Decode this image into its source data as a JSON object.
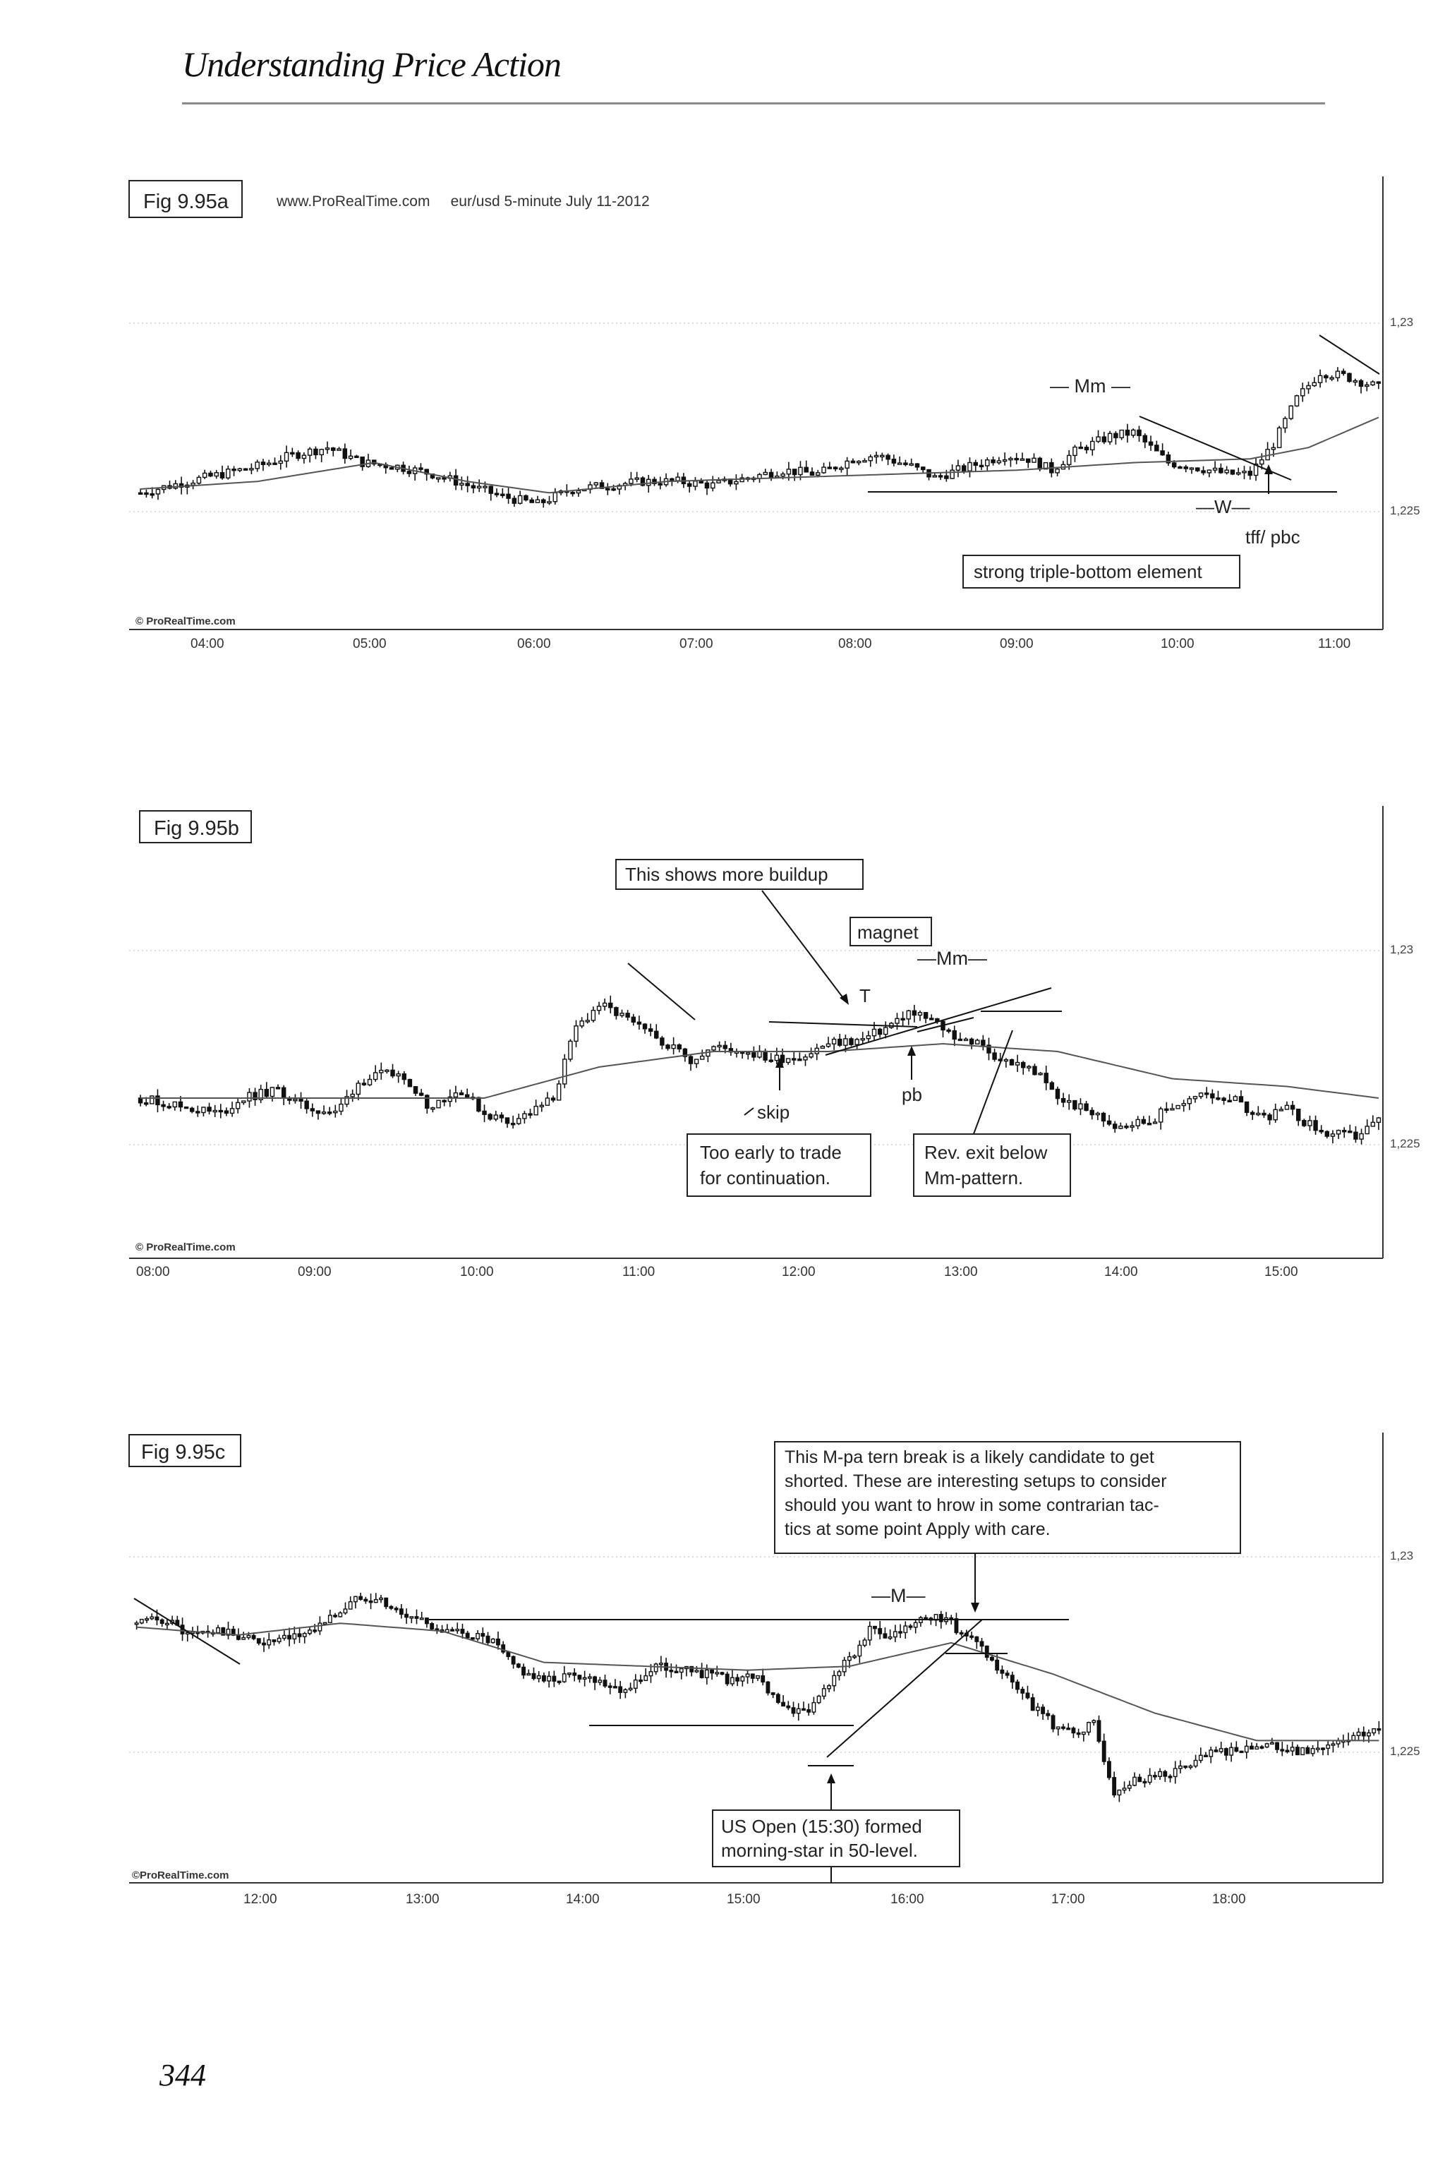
{
  "header": {
    "title": "Understanding Price Action"
  },
  "page_number": "344",
  "charts": [
    {
      "fig": "Fig 9.95a",
      "info": "www.ProRealTime.com     eur/usd 5-minute July 11-2012",
      "source": "© ProRealTime.com",
      "times": [
        "04:00",
        "05:00",
        "06:00",
        "07:00",
        "08:00",
        "09:00",
        "10:00",
        "11:00"
      ],
      "y_labels": [
        "1,23",
        "1,225"
      ],
      "annotations": {
        "mm": "— Mm —",
        "w": "—W—",
        "tff": "tff/ pbc",
        "box1": "strong triple-bottom element"
      }
    },
    {
      "fig": "Fig 9.95b",
      "source": "© ProRealTime.com",
      "times": [
        "08:00",
        "09:00",
        "10:00",
        "11:00",
        "12:00",
        "13:00",
        "14:00",
        "15:00"
      ],
      "y_labels": [
        "1,23",
        "1,225"
      ],
      "annotations": {
        "box_buildup": "This shows more buildup",
        "box_magnet": "magnet",
        "mm": "—Mm—",
        "t": "T",
        "pb": "pb",
        "skip": "skip",
        "box_early_1": "Too early to trade",
        "box_early_2": "for continuation.",
        "box_rev_1": "Rev. exit below",
        "box_rev_2": "Mm-pattern."
      }
    },
    {
      "fig": "Fig 9.95c",
      "source": "©ProRealTime.com",
      "times": [
        "12:00",
        "13:00",
        "14:00",
        "15:00",
        "16:00",
        "17:00",
        "18:00"
      ],
      "y_labels": [
        "1,23",
        "1,225"
      ],
      "annotations": {
        "box_mpattern": [
          "This M-pa tern break is a likely candidate to get",
          "shorted. These are interesting setups to consider",
          "should you want to  hrow in some contrarian tac-",
          "tics at some point  Apply with care."
        ],
        "m": "—M—",
        "box_usopen_1": "US Open (15:30) formed",
        "box_usopen_2": "morning-star in 50-level."
      }
    }
  ],
  "chart_data": [
    {
      "type": "candlestick",
      "title": "Fig 9.95a",
      "subtitle": "eur/usd 5-minute July 11-2012",
      "x_ticks": [
        "04:00",
        "05:00",
        "06:00",
        "07:00",
        "08:00",
        "09:00",
        "10:00",
        "11:00"
      ],
      "y_ticks": [
        1.23,
        1.225
      ],
      "ylim": [
        1.2235,
        1.2315
      ],
      "close_path": [
        [
          0,
          1.2255
        ],
        [
          8,
          1.2258
        ],
        [
          14,
          1.226
        ],
        [
          20,
          1.2262
        ],
        [
          26,
          1.2265
        ],
        [
          32,
          1.2267
        ],
        [
          38,
          1.2263
        ],
        [
          44,
          1.2262
        ],
        [
          50,
          1.226
        ],
        [
          56,
          1.2257
        ],
        [
          62,
          1.2254
        ],
        [
          68,
          1.2252
        ],
        [
          74,
          1.2256
        ],
        [
          80,
          1.2257
        ],
        [
          86,
          1.2258
        ],
        [
          92,
          1.2258
        ],
        [
          98,
          1.2257
        ],
        [
          104,
          1.2259
        ],
        [
          110,
          1.2261
        ],
        [
          116,
          1.226
        ],
        [
          122,
          1.2264
        ],
        [
          126,
          1.2265
        ],
        [
          132,
          1.2262
        ],
        [
          136,
          1.2259
        ],
        [
          142,
          1.2262
        ],
        [
          148,
          1.2265
        ],
        [
          152,
          1.2264
        ],
        [
          156,
          1.2261
        ],
        [
          160,
          1.2266
        ],
        [
          166,
          1.227
        ],
        [
          170,
          1.2271
        ],
        [
          176,
          1.2263
        ],
        [
          180,
          1.2262
        ],
        [
          186,
          1.226
        ],
        [
          190,
          1.226
        ],
        [
          194,
          1.2268
        ],
        [
          198,
          1.228
        ],
        [
          202,
          1.2287
        ],
        [
          206,
          1.2286
        ],
        [
          212,
          1.2283
        ]
      ],
      "ma_path": [
        [
          0,
          1.2256
        ],
        [
          20,
          1.2258
        ],
        [
          40,
          1.2263
        ],
        [
          56,
          1.2258
        ],
        [
          70,
          1.2255
        ],
        [
          90,
          1.2258
        ],
        [
          110,
          1.2259
        ],
        [
          130,
          1.226
        ],
        [
          150,
          1.2261
        ],
        [
          170,
          1.2263
        ],
        [
          190,
          1.2264
        ],
        [
          200,
          1.2267
        ],
        [
          212,
          1.2275
        ]
      ]
    },
    {
      "type": "candlestick",
      "title": "Fig 9.95b",
      "x_ticks": [
        "08:00",
        "09:00",
        "10:00",
        "11:00",
        "12:00",
        "13:00",
        "14:00",
        "15:00"
      ],
      "y_ticks": [
        1.23,
        1.225
      ],
      "ylim": [
        1.2235,
        1.2315
      ],
      "close_path": [
        [
          0,
          1.2262
        ],
        [
          10,
          1.2259
        ],
        [
          14,
          1.2258
        ],
        [
          18,
          1.2262
        ],
        [
          24,
          1.2264
        ],
        [
          28,
          1.226
        ],
        [
          34,
          1.2258
        ],
        [
          38,
          1.2266
        ],
        [
          42,
          1.2268
        ],
        [
          46,
          1.2268
        ],
        [
          50,
          1.226
        ],
        [
          56,
          1.2264
        ],
        [
          60,
          1.2258
        ],
        [
          64,
          1.2256
        ],
        [
          68,
          1.2258
        ],
        [
          72,
          1.2262
        ],
        [
          76,
          1.228
        ],
        [
          80,
          1.2286
        ],
        [
          84,
          1.2283
        ],
        [
          88,
          1.2279
        ],
        [
          92,
          1.2276
        ],
        [
          96,
          1.2272
        ],
        [
          100,
          1.2275
        ],
        [
          106,
          1.2274
        ],
        [
          110,
          1.2272
        ],
        [
          116,
          1.2273
        ],
        [
          120,
          1.2276
        ],
        [
          126,
          1.2277
        ],
        [
          130,
          1.228
        ],
        [
          134,
          1.2284
        ],
        [
          138,
          1.2282
        ],
        [
          142,
          1.2278
        ],
        [
          146,
          1.2276
        ],
        [
          150,
          1.2272
        ],
        [
          156,
          1.2269
        ],
        [
          160,
          1.2262
        ],
        [
          166,
          1.2258
        ],
        [
          170,
          1.2255
        ],
        [
          176,
          1.2256
        ],
        [
          180,
          1.226
        ],
        [
          186,
          1.2263
        ],
        [
          190,
          1.2262
        ],
        [
          196,
          1.2257
        ],
        [
          200,
          1.2259
        ],
        [
          206,
          1.2253
        ],
        [
          212,
          1.2252
        ],
        [
          216,
          1.2256
        ]
      ],
      "ma_path": [
        [
          0,
          1.2262
        ],
        [
          30,
          1.2262
        ],
        [
          60,
          1.2262
        ],
        [
          80,
          1.227
        ],
        [
          100,
          1.2274
        ],
        [
          120,
          1.2274
        ],
        [
          140,
          1.2276
        ],
        [
          160,
          1.2274
        ],
        [
          180,
          1.2267
        ],
        [
          200,
          1.2265
        ],
        [
          216,
          1.2262
        ]
      ]
    },
    {
      "type": "candlestick",
      "title": "Fig 9.95c",
      "x_ticks": [
        "12:00",
        "13:00",
        "14:00",
        "15:00",
        "16:00",
        "17:00",
        "18:00"
      ],
      "y_ticks": [
        1.23,
        1.225
      ],
      "ylim": [
        1.2235,
        1.2315
      ],
      "close_path": [
        [
          0,
          1.2283
        ],
        [
          6,
          1.2284
        ],
        [
          10,
          1.228
        ],
        [
          16,
          1.2281
        ],
        [
          22,
          1.2279
        ],
        [
          26,
          1.2278
        ],
        [
          30,
          1.2279
        ],
        [
          34,
          1.2281
        ],
        [
          40,
          1.2286
        ],
        [
          44,
          1.229
        ],
        [
          48,
          1.2289
        ],
        [
          52,
          1.2285
        ],
        [
          56,
          1.2284
        ],
        [
          60,
          1.2281
        ],
        [
          66,
          1.228
        ],
        [
          70,
          1.2278
        ],
        [
          74,
          1.2272
        ],
        [
          80,
          1.2268
        ],
        [
          86,
          1.227
        ],
        [
          92,
          1.2268
        ],
        [
          96,
          1.2266
        ],
        [
          102,
          1.2272
        ],
        [
          108,
          1.2271
        ],
        [
          112,
          1.227
        ],
        [
          118,
          1.2268
        ],
        [
          122,
          1.227
        ],
        [
          126,
          1.2262
        ],
        [
          132,
          1.226
        ],
        [
          136,
          1.2268
        ],
        [
          140,
          1.2274
        ],
        [
          144,
          1.2281
        ],
        [
          148,
          1.2279
        ],
        [
          152,
          1.2282
        ],
        [
          156,
          1.2285
        ],
        [
          160,
          1.2283
        ],
        [
          166,
          1.2276
        ],
        [
          170,
          1.227
        ],
        [
          174,
          1.2264
        ],
        [
          180,
          1.2257
        ],
        [
          184,
          1.2255
        ],
        [
          188,
          1.2257
        ],
        [
          192,
          1.224
        ],
        [
          196,
          1.2243
        ],
        [
          204,
          1.2245
        ],
        [
          212,
          1.225
        ],
        [
          220,
          1.2252
        ],
        [
          228,
          1.225
        ],
        [
          236,
          1.2252
        ],
        [
          244,
          1.2256
        ]
      ],
      "ma_path": [
        [
          0,
          1.2282
        ],
        [
          20,
          1.228
        ],
        [
          40,
          1.2283
        ],
        [
          60,
          1.2281
        ],
        [
          80,
          1.2273
        ],
        [
          100,
          1.2272
        ],
        [
          120,
          1.2271
        ],
        [
          140,
          1.2272
        ],
        [
          160,
          1.2278
        ],
        [
          180,
          1.227
        ],
        [
          200,
          1.226
        ],
        [
          220,
          1.2253
        ],
        [
          244,
          1.2253
        ]
      ]
    }
  ]
}
